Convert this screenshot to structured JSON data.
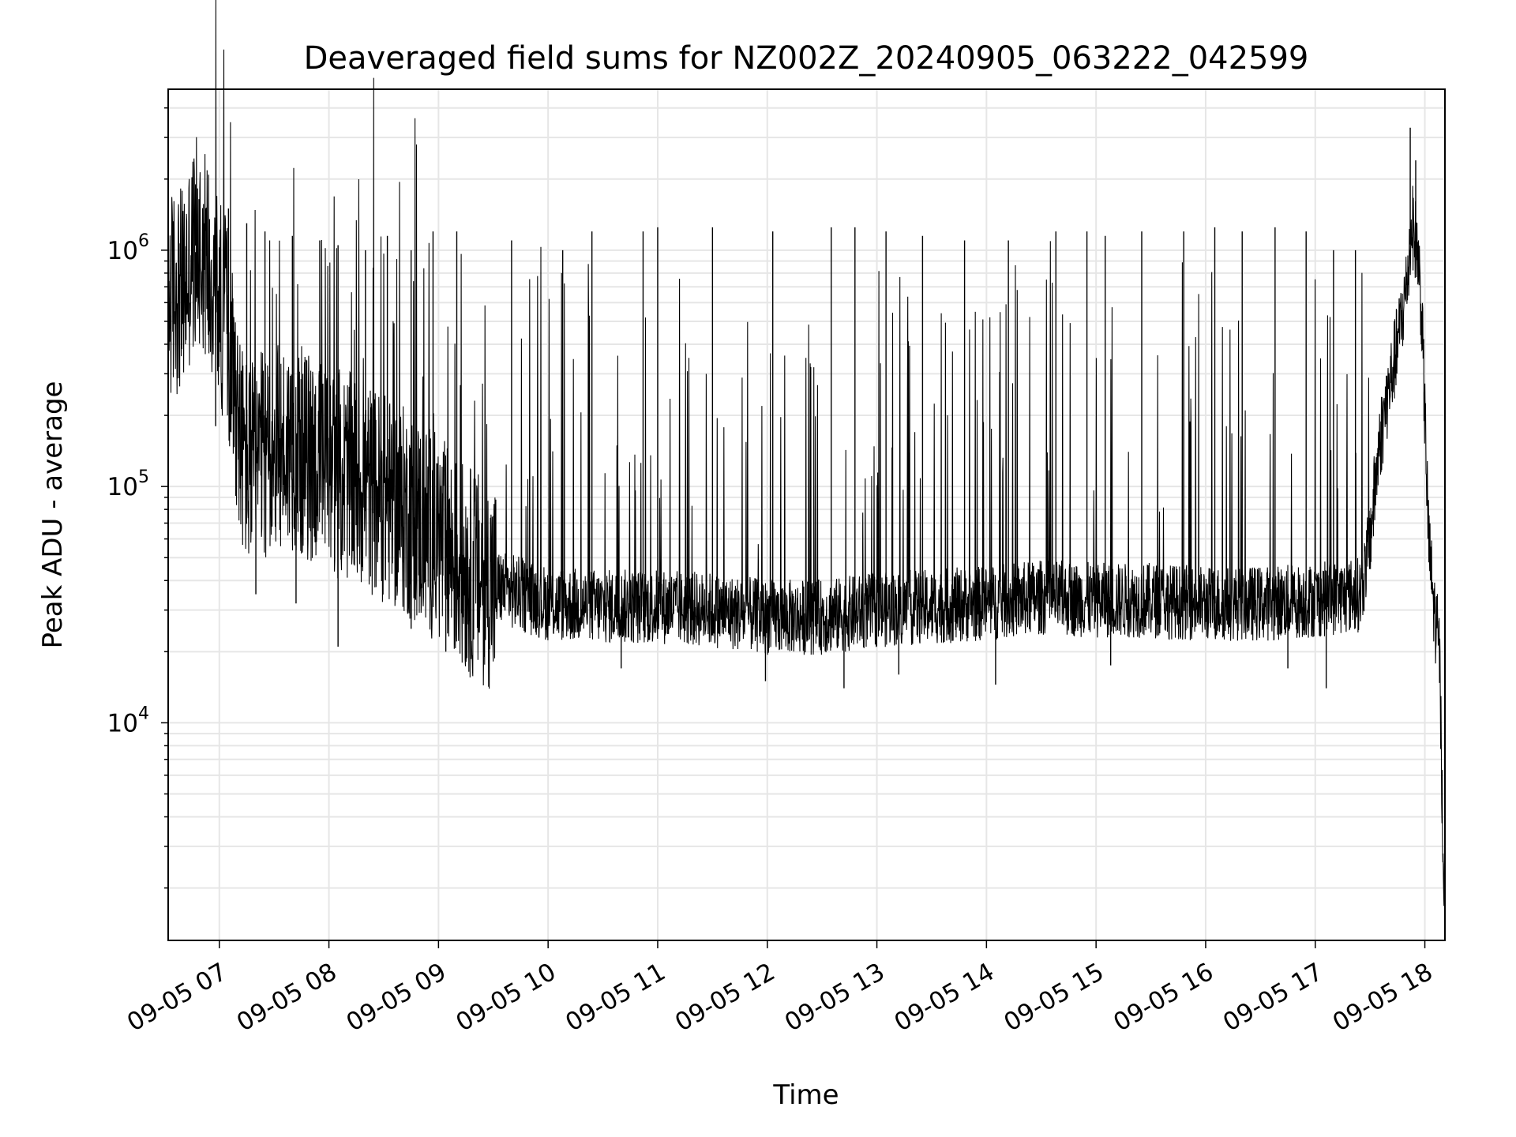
{
  "chart_data": {
    "type": "line",
    "title": "Deaveraged field sums for NZ002Z_20240905_063222_042599",
    "xlabel": "Time",
    "ylabel": "Peak ADU - average",
    "y_scale": "log",
    "grid": true,
    "legend": "none",
    "xlim": [
      "2024-09-05 06:32",
      "2024-09-05 18:11"
    ],
    "ylim": [
      1200,
      4800000
    ],
    "x_ticks": [
      {
        "value": "2024-09-05 07:00",
        "label": "09-05 07"
      },
      {
        "value": "2024-09-05 08:00",
        "label": "09-05 08"
      },
      {
        "value": "2024-09-05 09:00",
        "label": "09-05 09"
      },
      {
        "value": "2024-09-05 10:00",
        "label": "09-05 10"
      },
      {
        "value": "2024-09-05 11:00",
        "label": "09-05 11"
      },
      {
        "value": "2024-09-05 12:00",
        "label": "09-05 12"
      },
      {
        "value": "2024-09-05 13:00",
        "label": "09-05 13"
      },
      {
        "value": "2024-09-05 14:00",
        "label": "09-05 14"
      },
      {
        "value": "2024-09-05 15:00",
        "label": "09-05 15"
      },
      {
        "value": "2024-09-05 16:00",
        "label": "09-05 16"
      },
      {
        "value": "2024-09-05 17:00",
        "label": "09-05 17"
      },
      {
        "value": "2024-09-05 18:00",
        "label": "09-05 18"
      }
    ],
    "y_ticks": [
      {
        "value": 10000,
        "base": "10",
        "exp": "4"
      },
      {
        "value": 100000,
        "base": "10",
        "exp": "5"
      },
      {
        "value": 1000000,
        "base": "10",
        "exp": "6"
      }
    ],
    "series": [
      {
        "color": "#000000",
        "points": [
          [
            "2024-09-05 06:32",
            600000
          ],
          [
            "2024-09-05 06:36",
            700000
          ],
          [
            "2024-09-05 06:40",
            650000
          ],
          [
            "2024-09-05 06:44",
            900000
          ],
          [
            "2024-09-05 06:48",
            1100000
          ],
          [
            "2024-09-05 06:52",
            1000000
          ],
          [
            "2024-09-05 06:56",
            800000
          ],
          [
            "2024-09-05 07:00",
            600000
          ],
          [
            "2024-09-05 07:04",
            500000
          ],
          [
            "2024-09-05 07:08",
            300000
          ],
          [
            "2024-09-05 07:12",
            150000
          ],
          [
            "2024-09-05 07:16",
            120000
          ],
          [
            "2024-09-05 07:20",
            130000
          ],
          [
            "2024-09-05 07:30",
            140000
          ],
          [
            "2024-09-05 07:40",
            150000
          ],
          [
            "2024-09-05 07:50",
            130000
          ],
          [
            "2024-09-05 08:00",
            120000
          ],
          [
            "2024-09-05 08:10",
            110000
          ],
          [
            "2024-09-05 08:20",
            100000
          ],
          [
            "2024-09-05 08:30",
            90000
          ],
          [
            "2024-09-05 08:40",
            80000
          ],
          [
            "2024-09-05 08:50",
            70000
          ],
          [
            "2024-09-05 09:00",
            60000
          ],
          [
            "2024-09-05 09:10",
            48000
          ],
          [
            "2024-09-05 09:20",
            42000
          ],
          [
            "2024-09-05 09:30",
            38000
          ],
          [
            "2024-09-05 09:40",
            36000
          ],
          [
            "2024-09-05 10:00",
            32000
          ],
          [
            "2024-09-05 10:30",
            31000
          ],
          [
            "2024-09-05 11:00",
            31000
          ],
          [
            "2024-09-05 11:30",
            30000
          ],
          [
            "2024-09-05 12:00",
            28000
          ],
          [
            "2024-09-05 12:30",
            28000
          ],
          [
            "2024-09-05 13:00",
            30000
          ],
          [
            "2024-09-05 13:30",
            31000
          ],
          [
            "2024-09-05 14:00",
            32000
          ],
          [
            "2024-09-05 14:30",
            34000
          ],
          [
            "2024-09-05 15:00",
            33000
          ],
          [
            "2024-09-05 15:30",
            33000
          ],
          [
            "2024-09-05 16:00",
            32000
          ],
          [
            "2024-09-05 16:30",
            32000
          ],
          [
            "2024-09-05 17:00",
            33000
          ],
          [
            "2024-09-05 17:25",
            35000
          ],
          [
            "2024-09-05 17:30",
            60000
          ],
          [
            "2024-09-05 17:35",
            150000
          ],
          [
            "2024-09-05 17:40",
            250000
          ],
          [
            "2024-09-05 17:45",
            400000
          ],
          [
            "2024-09-05 17:50",
            700000
          ],
          [
            "2024-09-05 17:53",
            1300000
          ],
          [
            "2024-09-05 17:56",
            1000000
          ],
          [
            "2024-09-05 17:58",
            600000
          ],
          [
            "2024-09-05 18:00",
            200000
          ],
          [
            "2024-09-05 18:02",
            60000
          ],
          [
            "2024-09-05 18:05",
            30000
          ],
          [
            "2024-09-05 18:08",
            20000
          ],
          [
            "2024-09-05 18:10",
            3000
          ],
          [
            "2024-09-05 18:11",
            1700
          ]
        ],
        "spikes": [
          [
            "2024-09-05 06:47",
            1900000
          ],
          [
            "2024-09-05 06:53",
            1500000
          ],
          [
            "2024-09-05 07:05",
            1500000
          ],
          [
            "2024-09-05 07:15",
            1300000
          ],
          [
            "2024-09-05 07:25",
            1200000
          ],
          [
            "2024-09-05 07:40",
            1150000
          ],
          [
            "2024-09-05 07:55",
            1100000
          ],
          [
            "2024-09-05 08:05",
            1050000
          ],
          [
            "2024-09-05 08:20",
            1000000
          ],
          [
            "2024-09-05 08:32",
            1150000
          ],
          [
            "2024-09-05 08:45",
            1000000
          ],
          [
            "2024-09-05 08:57",
            1200000
          ],
          [
            "2024-09-05 09:10",
            1200000
          ],
          [
            "2024-09-05 09:40",
            1100000
          ],
          [
            "2024-09-05 10:08",
            1000000
          ],
          [
            "2024-09-05 10:24",
            1200000
          ],
          [
            "2024-09-05 10:52",
            1200000
          ],
          [
            "2024-09-05 11:00",
            1250000
          ],
          [
            "2024-09-05 11:30",
            1250000
          ],
          [
            "2024-09-05 12:03",
            1200000
          ],
          [
            "2024-09-05 12:35",
            1250000
          ],
          [
            "2024-09-05 12:48",
            1250000
          ],
          [
            "2024-09-05 13:05",
            1200000
          ],
          [
            "2024-09-05 13:25",
            1150000
          ],
          [
            "2024-09-05 13:48",
            1100000
          ],
          [
            "2024-09-05 14:12",
            1100000
          ],
          [
            "2024-09-05 14:38",
            1200000
          ],
          [
            "2024-09-05 14:55",
            1200000
          ],
          [
            "2024-09-05 15:05",
            1150000
          ],
          [
            "2024-09-05 15:25",
            1200000
          ],
          [
            "2024-09-05 15:48",
            1200000
          ],
          [
            "2024-09-05 16:05",
            1250000
          ],
          [
            "2024-09-05 16:20",
            1200000
          ],
          [
            "2024-09-05 16:38",
            1250000
          ],
          [
            "2024-09-05 16:55",
            1200000
          ],
          [
            "2024-09-05 17:10",
            1000000
          ],
          [
            "2024-09-05 17:22",
            1000000
          ],
          [
            "2024-09-05 17:52",
            3300000
          ],
          [
            "2024-09-05 17:55",
            2400000
          ]
        ],
        "dips": [
          [
            "2024-09-05 06:58",
            180000
          ],
          [
            "2024-09-05 07:20",
            35000
          ],
          [
            "2024-09-05 07:42",
            32000
          ],
          [
            "2024-09-05 08:05",
            21000
          ],
          [
            "2024-09-05 08:45",
            25000
          ],
          [
            "2024-09-05 09:04",
            20000
          ],
          [
            "2024-09-05 09:25",
            19000
          ],
          [
            "2024-09-05 10:40",
            17000
          ],
          [
            "2024-09-05 11:59",
            15000
          ],
          [
            "2024-09-05 12:42",
            14000
          ],
          [
            "2024-09-05 13:12",
            16000
          ],
          [
            "2024-09-05 14:05",
            14500
          ],
          [
            "2024-09-05 15:08",
            17500
          ],
          [
            "2024-09-05 16:45",
            17000
          ],
          [
            "2024-09-05 17:06",
            14000
          ]
        ]
      }
    ]
  }
}
